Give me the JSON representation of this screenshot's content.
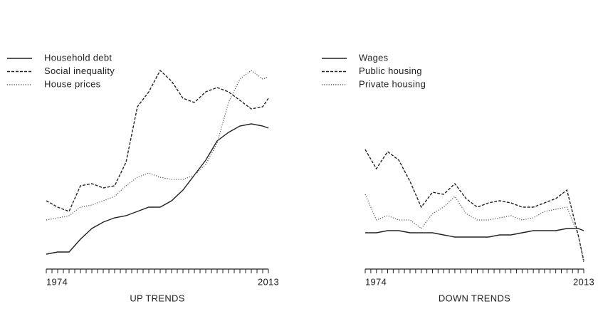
{
  "chart_data": [
    {
      "type": "line",
      "title": "UP TRENDS",
      "legend": "top-left",
      "x": [
        1974,
        1976,
        1978,
        1980,
        1982,
        1984,
        1986,
        1988,
        1990,
        1992,
        1994,
        1996,
        1998,
        2000,
        2002,
        2004,
        2006,
        2008,
        2010,
        2012,
        2013
      ],
      "xlim": [
        1974,
        2013
      ],
      "xticks": [
        1974,
        2013
      ],
      "minor_xticks": [
        1974,
        1975,
        1976,
        1977,
        1978,
        1979,
        1980,
        1981,
        1982,
        1983,
        1984,
        1985,
        1986,
        1987,
        1988,
        1989,
        1990,
        1991,
        1992,
        1993,
        1994,
        1995,
        1996,
        1997,
        1998,
        1999,
        2000,
        2001,
        2002,
        2003,
        2004,
        2005,
        2006,
        2007,
        2008,
        2009,
        2010,
        2011,
        2012,
        2013
      ],
      "ylim": [
        0,
        100
      ],
      "series": [
        {
          "name": "Household debt",
          "color": "#222222",
          "dash": "solid",
          "values": [
            7,
            8,
            8,
            14,
            19,
            22,
            24,
            25,
            27,
            29,
            29,
            32,
            37,
            44,
            51,
            60,
            64,
            67,
            68,
            67,
            66
          ]
        },
        {
          "name": "Social inequality",
          "color": "#222222",
          "dash": "dashed",
          "values": [
            32,
            29,
            27,
            39,
            40,
            38,
            39,
            50,
            76,
            83,
            93,
            88,
            80,
            78,
            83,
            85,
            83,
            79,
            75,
            76,
            80
          ]
        },
        {
          "name": "House prices",
          "color": "#555555",
          "dash": "dotted",
          "values": [
            23,
            24,
            25,
            29,
            30,
            32,
            34,
            39,
            43,
            45,
            43,
            42,
            42,
            44,
            49,
            59,
            78,
            89,
            93,
            89,
            90
          ]
        }
      ]
    },
    {
      "type": "line",
      "title": "DOWN TRENDS",
      "legend": "top-left",
      "x": [
        1974,
        1976,
        1978,
        1980,
        1982,
        1984,
        1986,
        1988,
        1990,
        1992,
        1994,
        1996,
        1998,
        2000,
        2002,
        2004,
        2006,
        2008,
        2010,
        2012,
        2013
      ],
      "xlim": [
        1974,
        2013
      ],
      "xticks": [
        1974,
        2013
      ],
      "minor_xticks": [
        1974,
        1975,
        1976,
        1977,
        1978,
        1979,
        1980,
        1981,
        1982,
        1983,
        1984,
        1985,
        1986,
        1987,
        1988,
        1989,
        1990,
        1991,
        1992,
        1993,
        1994,
        1995,
        1996,
        1997,
        1998,
        1999,
        2000,
        2001,
        2002,
        2003,
        2004,
        2005,
        2006,
        2007,
        2008,
        2009,
        2010,
        2011,
        2012,
        2013
      ],
      "ylim": [
        0,
        100
      ],
      "series": [
        {
          "name": "Wages",
          "color": "#222222",
          "dash": "solid",
          "values": [
            17,
            17,
            18,
            18,
            17,
            17,
            17,
            16,
            15,
            15,
            15,
            15,
            16,
            16,
            17,
            18,
            18,
            18,
            19,
            19,
            18
          ]
        },
        {
          "name": "Public housing",
          "color": "#222222",
          "dash": "dashed",
          "values": [
            56,
            47,
            55,
            51,
            41,
            29,
            36,
            35,
            40,
            33,
            29,
            31,
            32,
            31,
            29,
            29,
            31,
            33,
            37,
            16,
            4
          ]
        },
        {
          "name": "Private housing",
          "color": "#555555",
          "dash": "dotted",
          "values": [
            35,
            23,
            25,
            23,
            23,
            19,
            26,
            29,
            34,
            26,
            23,
            23,
            24,
            25,
            23,
            24,
            27,
            28,
            29,
            16,
            3
          ]
        }
      ]
    }
  ]
}
